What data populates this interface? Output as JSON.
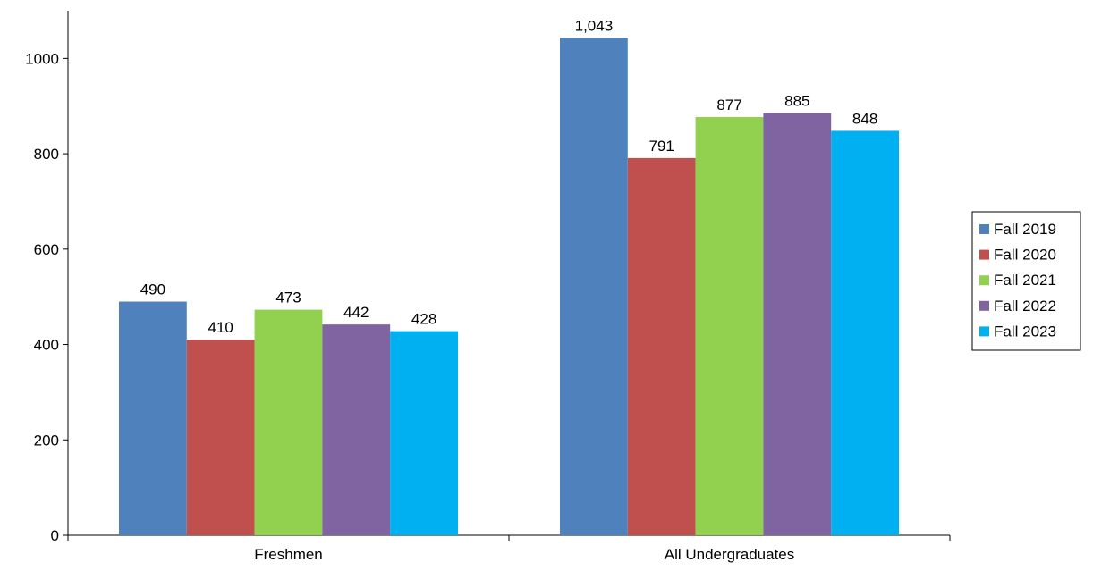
{
  "chart_data": {
    "type": "bar",
    "categories": [
      "Freshmen",
      "All Undergraduates"
    ],
    "series": [
      {
        "name": "Fall 2019",
        "color": "#4F81BD",
        "values": [
          490,
          1043
        ],
        "labels": [
          "490",
          "1,043"
        ]
      },
      {
        "name": "Fall 2020",
        "color": "#C0504D",
        "values": [
          410,
          791
        ],
        "labels": [
          "410",
          "791"
        ]
      },
      {
        "name": "Fall 2021",
        "color": "#92D050",
        "values": [
          473,
          877
        ],
        "labels": [
          "473",
          "877"
        ]
      },
      {
        "name": "Fall 2022",
        "color": "#8064A2",
        "values": [
          442,
          885
        ],
        "labels": [
          "442",
          "885"
        ]
      },
      {
        "name": "Fall 2023",
        "color": "#00B0F0",
        "values": [
          428,
          848
        ],
        "labels": [
          "428",
          "848"
        ]
      }
    ],
    "yticks": [
      0,
      200,
      400,
      600,
      800,
      1000
    ],
    "ylim": [
      0,
      1100
    ],
    "title": "",
    "xlabel": "",
    "ylabel": "",
    "grid": false,
    "legend_position": "right"
  }
}
